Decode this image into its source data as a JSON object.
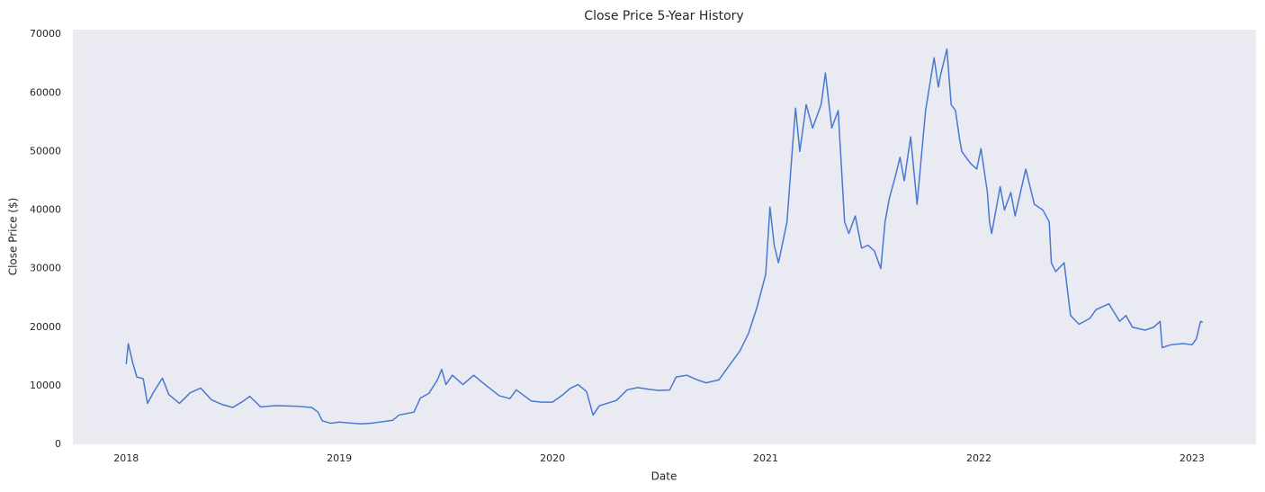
{
  "chart_data": {
    "type": "line",
    "title": "Close Price 5-Year History",
    "x_label": "Date",
    "y_label": "Close Price ($)",
    "x": [
      2018.0,
      2018.01,
      2018.03,
      2018.05,
      2018.08,
      2018.1,
      2018.13,
      2018.17,
      2018.2,
      2018.25,
      2018.3,
      2018.35,
      2018.4,
      2018.45,
      2018.5,
      2018.55,
      2018.58,
      2018.63,
      2018.7,
      2018.8,
      2018.87,
      2018.9,
      2018.92,
      2018.96,
      2019.0,
      2019.1,
      2019.15,
      2019.25,
      2019.28,
      2019.35,
      2019.38,
      2019.42,
      2019.46,
      2019.48,
      2019.5,
      2019.53,
      2019.58,
      2019.63,
      2019.68,
      2019.75,
      2019.8,
      2019.83,
      2019.9,
      2019.95,
      2020.0,
      2020.05,
      2020.08,
      2020.12,
      2020.16,
      2020.19,
      2020.22,
      2020.3,
      2020.35,
      2020.4,
      2020.45,
      2020.5,
      2020.55,
      2020.58,
      2020.63,
      2020.68,
      2020.72,
      2020.78,
      2020.82,
      2020.88,
      2020.92,
      2020.96,
      2021.0,
      2021.02,
      2021.04,
      2021.06,
      2021.1,
      2021.12,
      2021.14,
      2021.16,
      2021.19,
      2021.22,
      2021.26,
      2021.28,
      2021.31,
      2021.34,
      2021.37,
      2021.39,
      2021.42,
      2021.45,
      2021.48,
      2021.51,
      2021.54,
      2021.56,
      2021.58,
      2021.61,
      2021.63,
      2021.65,
      2021.68,
      2021.71,
      2021.75,
      2021.79,
      2021.81,
      2021.82,
      2021.85,
      2021.87,
      2021.89,
      2021.91,
      2021.92,
      2021.96,
      2021.99,
      2022.01,
      2022.04,
      2022.05,
      2022.06,
      2022.1,
      2022.12,
      2022.15,
      2022.17,
      2022.22,
      2022.26,
      2022.3,
      2022.33,
      2022.34,
      2022.36,
      2022.4,
      2022.43,
      2022.47,
      2022.52,
      2022.55,
      2022.61,
      2022.66,
      2022.69,
      2022.72,
      2022.78,
      2022.82,
      2022.85,
      2022.86,
      2022.9,
      2022.96,
      2023.0,
      2023.02,
      2023.04,
      2023.05
    ],
    "series": [
      {
        "name": "Close",
        "color": "#4878d0",
        "values": [
          13700,
          17200,
          14000,
          11500,
          11200,
          7000,
          9000,
          11300,
          8500,
          7000,
          8800,
          9600,
          7600,
          6800,
          6300,
          7400,
          8200,
          6400,
          6600,
          6500,
          6300,
          5500,
          4000,
          3600,
          3800,
          3500,
          3600,
          4100,
          5000,
          5500,
          7900,
          8700,
          11000,
          12800,
          10200,
          11800,
          10200,
          11800,
          10300,
          8300,
          7800,
          9300,
          7400,
          7200,
          7200,
          8500,
          9500,
          10200,
          9000,
          5000,
          6600,
          7500,
          9300,
          9700,
          9400,
          9200,
          9300,
          11500,
          11800,
          11000,
          10500,
          11000,
          13000,
          16000,
          19000,
          23500,
          29000,
          40500,
          34000,
          31000,
          38000,
          48000,
          57400,
          50000,
          58000,
          54000,
          58000,
          63400,
          54000,
          57000,
          38000,
          36000,
          39000,
          33500,
          34000,
          33000,
          30000,
          38000,
          42000,
          46000,
          49000,
          45000,
          52500,
          41000,
          57000,
          66000,
          61000,
          63000,
          67500,
          58000,
          57000,
          52000,
          50000,
          48000,
          47000,
          50500,
          43000,
          38000,
          36000,
          44000,
          40000,
          43000,
          39000,
          47000,
          41000,
          40000,
          38000,
          31000,
          29500,
          31000,
          22000,
          20500,
          21500,
          23000,
          24000,
          21000,
          22000,
          20000,
          19500,
          20000,
          21000,
          16500,
          17000,
          17200,
          17000,
          18000,
          21000,
          20800
        ]
      }
    ],
    "xlim": [
      2017.75,
      2023.3
    ],
    "xticks": [
      2018,
      2019,
      2020,
      2021,
      2022,
      2023
    ],
    "ylim": [
      0,
      70800
    ],
    "yticks": [
      0,
      10000,
      20000,
      30000,
      40000,
      50000,
      60000,
      70000
    ],
    "grid": false,
    "background": "#eaeaf2"
  }
}
